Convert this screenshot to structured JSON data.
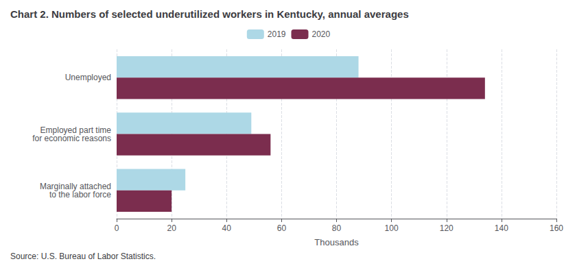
{
  "chart_data": {
    "type": "bar",
    "orientation": "horizontal",
    "title": "Chart 2. Numbers of selected underutilized workers in Kentucky, annual averages",
    "source": "Source: U.S. Bureau of Labor Statistics.",
    "categories": [
      "Unemployed",
      "Employed part time\nfor economic reasons",
      "Marginally attached\nto the labor force"
    ],
    "series": [
      {
        "name": "2019",
        "color": "#add8e6",
        "values": [
          88,
          49,
          25
        ]
      },
      {
        "name": "2020",
        "color": "#7b2d4e",
        "values": [
          134,
          56,
          20
        ]
      }
    ],
    "xlabel": "Thousands",
    "xlim": [
      0,
      160
    ],
    "xticks": [
      0,
      20,
      40,
      60,
      80,
      100,
      120,
      140,
      160
    ],
    "grid": true,
    "legend": "top"
  }
}
